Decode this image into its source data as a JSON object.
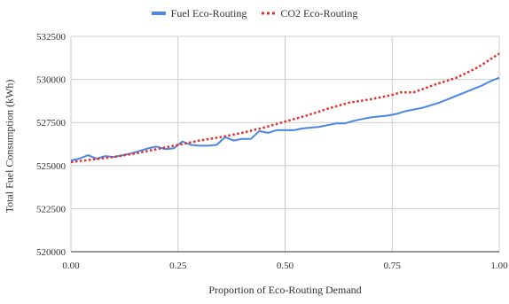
{
  "chart_data": {
    "type": "line",
    "xlabel": "Proportion of Eco-Routing Demand",
    "ylabel": "Total Fuel Consumption (kWh)",
    "xlim": [
      0,
      1
    ],
    "ylim": [
      520000,
      532500
    ],
    "xticks": [
      0,
      0.25,
      0.5,
      0.75,
      1
    ],
    "xtick_labels": [
      "0.00",
      "0.25",
      "0.50",
      "0.75",
      "1.00"
    ],
    "yticks": [
      520000,
      522500,
      525000,
      527500,
      530000,
      532500
    ],
    "ytick_labels": [
      "520000",
      "522500",
      "525000",
      "527500",
      "530000",
      "532500"
    ],
    "grid": true,
    "legend_position": "top-center",
    "series": [
      {
        "name": "Fuel Eco-Routing",
        "color": "#4a86e8",
        "style": "solid",
        "x": [
          0,
          0.02,
          0.04,
          0.06,
          0.08,
          0.1,
          0.12,
          0.14,
          0.16,
          0.18,
          0.2,
          0.22,
          0.24,
          0.26,
          0.28,
          0.3,
          0.32,
          0.34,
          0.36,
          0.38,
          0.4,
          0.42,
          0.44,
          0.46,
          0.48,
          0.5,
          0.52,
          0.54,
          0.56,
          0.58,
          0.6,
          0.62,
          0.64,
          0.66,
          0.68,
          0.7,
          0.72,
          0.74,
          0.76,
          0.78,
          0.8,
          0.82,
          0.84,
          0.86,
          0.88,
          0.9,
          0.92,
          0.94,
          0.96,
          0.98,
          1.0
        ],
        "values": [
          525300,
          525400,
          525600,
          525400,
          525550,
          525500,
          525600,
          525700,
          525850,
          526000,
          526100,
          525950,
          526000,
          526400,
          526200,
          526150,
          526150,
          526200,
          526650,
          526450,
          526550,
          526550,
          527000,
          526900,
          527050,
          527050,
          527050,
          527150,
          527200,
          527250,
          527350,
          527450,
          527450,
          527600,
          527700,
          527800,
          527850,
          527900,
          528000,
          528150,
          528250,
          528350,
          528500,
          528650,
          528850,
          529050,
          529250,
          529450,
          529650,
          529900,
          530100
        ]
      },
      {
        "name": "CO2 Eco-Routing",
        "color": "#e0302b",
        "style": "dotted",
        "x": [
          0,
          0.05,
          0.1,
          0.15,
          0.2,
          0.25,
          0.3,
          0.35,
          0.4,
          0.45,
          0.5,
          0.55,
          0.6,
          0.65,
          0.7,
          0.75,
          0.77,
          0.8,
          0.85,
          0.9,
          0.95,
          1.0
        ],
        "values": [
          525200,
          525350,
          525500,
          525700,
          525950,
          526200,
          526450,
          526650,
          526900,
          527200,
          527550,
          527900,
          528300,
          528650,
          528850,
          529100,
          529250,
          529250,
          529700,
          530100,
          530700,
          531500
        ]
      }
    ]
  }
}
